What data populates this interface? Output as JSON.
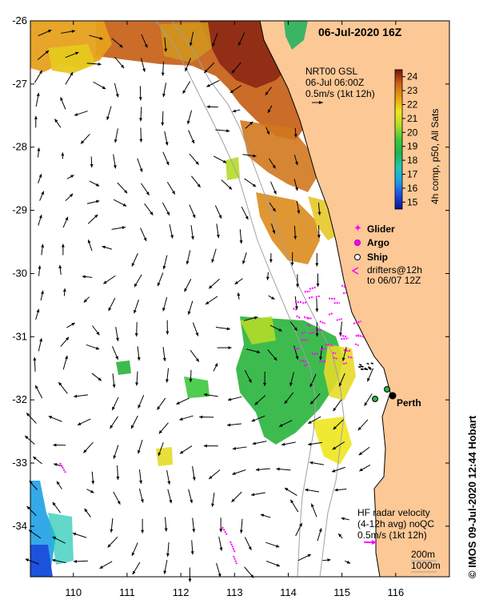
{
  "map": {
    "title": "06-Jul-2020 16Z",
    "city_label": "Perth",
    "credit": "© IMOS 09-Jul-2020 12:44 Hobart",
    "lat_ticks": [
      "-26",
      "-27",
      "-28",
      "-29",
      "-30",
      "-31",
      "-32",
      "-33",
      "-34"
    ],
    "lon_ticks": [
      "110",
      "111",
      "112",
      "113",
      "114",
      "115",
      "116"
    ],
    "lon_range": [
      109.2,
      117.0
    ],
    "lat_range": [
      -34.8,
      -26.0
    ],
    "land_color": "#fcc896"
  },
  "gsl_legend": {
    "line1": "NRT00 GSL",
    "line2": "06-Jul 06:00Z",
    "line3": "0.5m/s (1kt 12h)"
  },
  "colorbar": {
    "ticks": [
      "24",
      "23",
      "22",
      "21",
      "20",
      "19",
      "18",
      "17",
      "16",
      "15"
    ],
    "label": "4h comp, p50, All Sats",
    "range": [
      14.5,
      24.5
    ]
  },
  "platform_legend": {
    "glider": "Glider",
    "argo": "Argo",
    "ship": "Ship",
    "drifters_line1": "drifters@12h",
    "drifters_line2": "to 06/07 12Z",
    "glider_color": "#ff00ff",
    "argo_color": "#ff00ff"
  },
  "hf_legend": {
    "line1": "HF radar velocity",
    "line2": "(4-12h avg) noQC",
    "line3": "0.5m/s (1kt 12h)",
    "arrow_color": "#ff00ff"
  },
  "depth_legend": {
    "d200": "200m",
    "d1000": "1000m"
  }
}
